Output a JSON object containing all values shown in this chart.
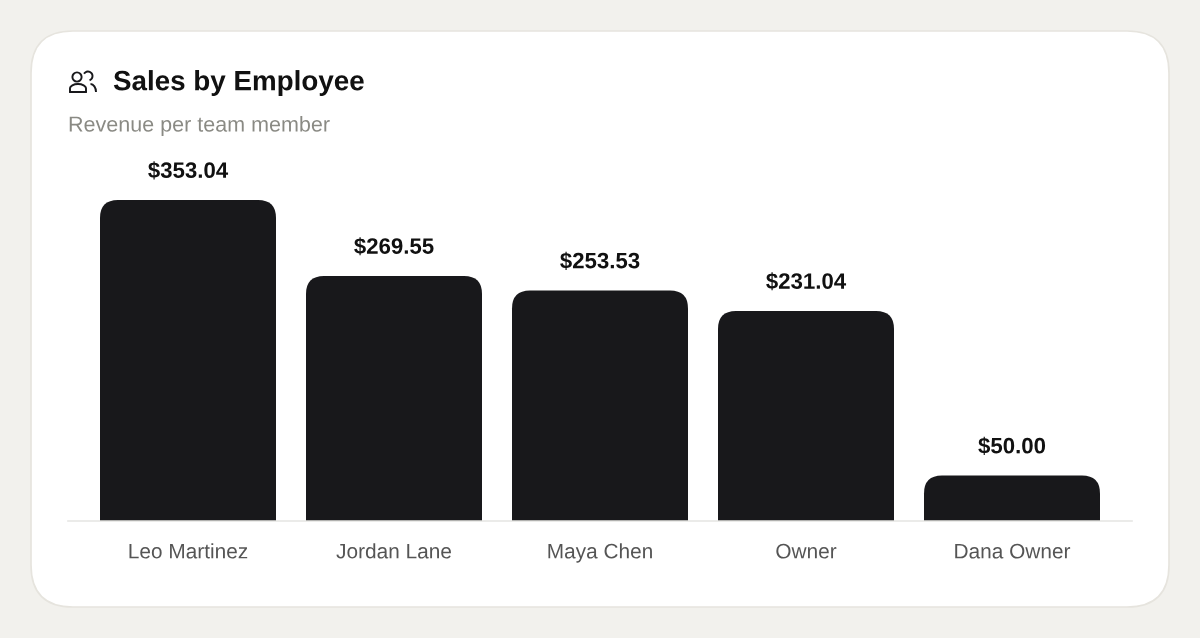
{
  "chart_data": {
    "type": "bar",
    "title": "Sales by Employee",
    "subtitle": "Revenue per team member",
    "categories": [
      "Leo Martinez",
      "Jordan Lane",
      "Maya Chen",
      "Owner",
      "Dana Owner"
    ],
    "values": [
      353.04,
      269.55,
      253.53,
      231.04,
      50.0
    ],
    "color": "#18181b",
    "value_labels": [
      "$353.04",
      "$269.55",
      "$253.53",
      "$231.04",
      "$50.00"
    ]
  }
}
